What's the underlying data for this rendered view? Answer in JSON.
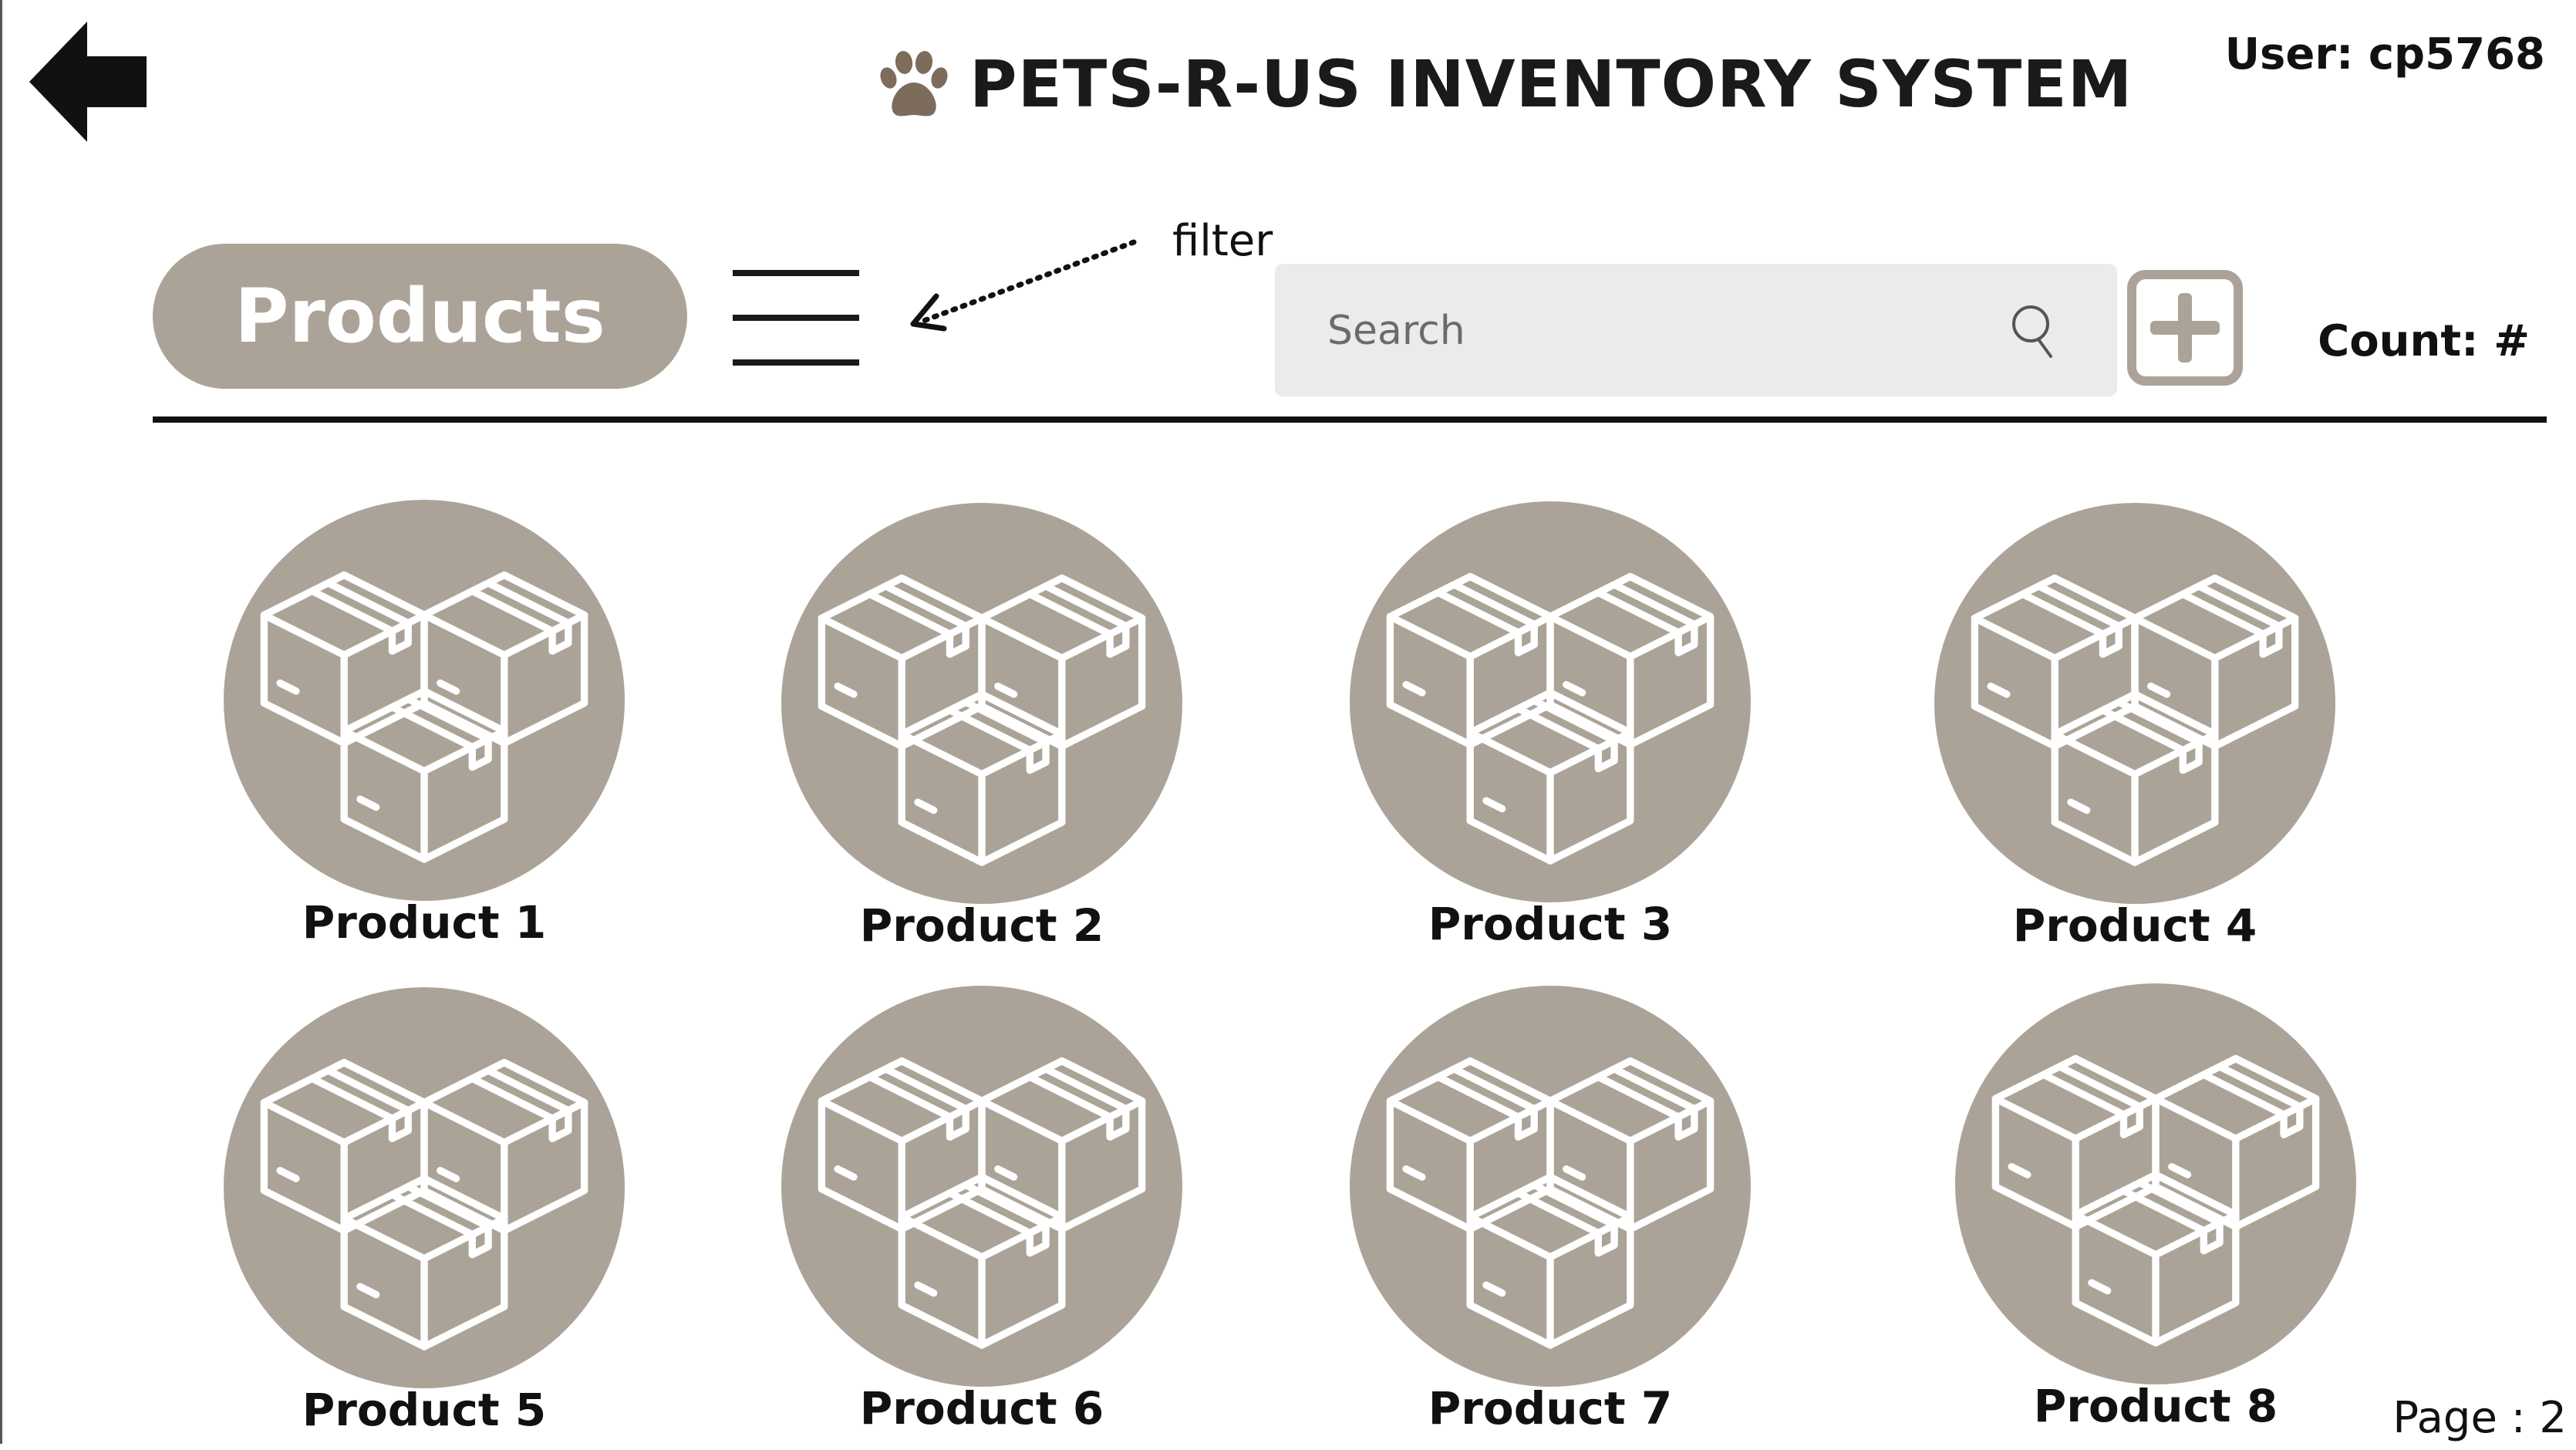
{
  "header": {
    "title": "PETS-R-US INVENTORY SYSTEM",
    "user": "User: cp5768",
    "back_icon": "arrow-left-icon",
    "logo_icon": "paw-icon"
  },
  "toolbar": {
    "section_label": "Products",
    "menu_icon": "hamburger-menu-icon",
    "filter_annotation": "filter",
    "search": {
      "placeholder": "Search",
      "value": ""
    },
    "add_icon": "plus-icon",
    "count_label": "Count: #"
  },
  "products": [
    {
      "name": "Product 1",
      "icon": "boxes-icon"
    },
    {
      "name": "Product 2",
      "icon": "boxes-icon"
    },
    {
      "name": "Product 3",
      "icon": "boxes-icon"
    },
    {
      "name": "Product 4",
      "icon": "boxes-icon"
    },
    {
      "name": "Product 5",
      "icon": "boxes-icon"
    },
    {
      "name": "Product 6",
      "icon": "boxes-icon"
    },
    {
      "name": "Product 7",
      "icon": "boxes-icon"
    },
    {
      "name": "Product 8",
      "icon": "boxes-icon"
    }
  ],
  "footer": {
    "page_label": "Page : 2"
  },
  "colors": {
    "accent": "#aca398",
    "search_bg": "#ebebeb",
    "text": "#1a1a1a",
    "paw": "#7d6b5c"
  }
}
